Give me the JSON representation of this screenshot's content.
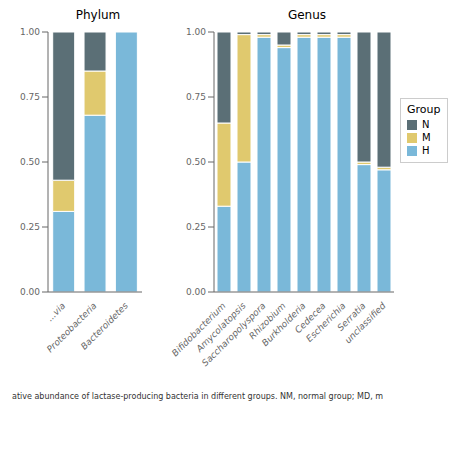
{
  "chart_data": [
    {
      "type": "bar",
      "title": "Phylum",
      "stacked": true,
      "categories": [
        "...via",
        "Proteobacteria",
        "Bacteroidetes"
      ],
      "series": [
        {
          "name": "H",
          "color": "#7ab8d9",
          "values": [
            0.31,
            0.68,
            1.0
          ]
        },
        {
          "name": "M",
          "color": "#e0c96e",
          "values": [
            0.12,
            0.17,
            0.0
          ]
        },
        {
          "name": "N",
          "color": "#5b6f76",
          "values": [
            0.57,
            0.15,
            0.0
          ]
        }
      ],
      "ylim": [
        0,
        1.0
      ],
      "yticks": [
        {
          "value": 0,
          "label": "0.00"
        },
        {
          "value": 0.25,
          "label": "0.25"
        },
        {
          "value": 0.5,
          "label": "0.50"
        },
        {
          "value": 0.75,
          "label": "0.75"
        },
        {
          "value": 1.0,
          "label": "1.00"
        }
      ]
    },
    {
      "type": "bar",
      "title": "Genus",
      "stacked": true,
      "categories": [
        "Bifidobacterium",
        "Amycolatopsis",
        "Saccharopolyspora",
        "Rhizobium",
        "Burkholderia",
        "Cedecea",
        "Escherichia",
        "Serratia",
        "unclassified"
      ],
      "series": [
        {
          "name": "H",
          "color": "#7ab8d9",
          "values": [
            0.33,
            0.5,
            0.98,
            0.94,
            0.98,
            0.98,
            0.98,
            0.49,
            0.47
          ]
        },
        {
          "name": "M",
          "color": "#e0c96e",
          "values": [
            0.32,
            0.49,
            0.01,
            0.01,
            0.01,
            0.01,
            0.01,
            0.01,
            0.01
          ]
        },
        {
          "name": "N",
          "color": "#5b6f76",
          "values": [
            0.35,
            0.01,
            0.01,
            0.05,
            0.01,
            0.01,
            0.01,
            0.5,
            0.52
          ]
        }
      ],
      "ylim": [
        0,
        1.0
      ],
      "yticks": [
        {
          "value": 0,
          "label": "0.00"
        },
        {
          "value": 0.25,
          "label": "0.25"
        },
        {
          "value": 0.5,
          "label": "0.50"
        },
        {
          "value": 0.75,
          "label": "0.75"
        },
        {
          "value": 1.0,
          "label": "1.00"
        }
      ],
      "legend": "right",
      "legend_title": "Group",
      "annotations": [
        "ative abundance of lactase-producing bacteria in different groups. NM, normal group; MD, m"
      ]
    }
  ]
}
